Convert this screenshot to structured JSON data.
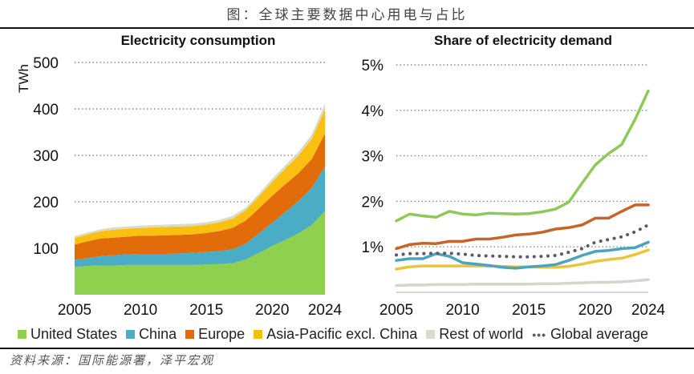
{
  "figure": {
    "title": "图：全球主要数据中心用电与占比",
    "source": "资料来源：国际能源署，泽平宏观"
  },
  "legend": [
    {
      "name": "United States",
      "color": "#8fd14f",
      "style": "square"
    },
    {
      "name": "China",
      "color": "#4bacc6",
      "style": "square"
    },
    {
      "name": "Europe",
      "color": "#e36c0a",
      "style": "square"
    },
    {
      "name": "Asia-Pacific excl. China",
      "color": "#f9c012",
      "style": "square"
    },
    {
      "name": "Rest of world",
      "color": "#d8dccb",
      "style": "square"
    },
    {
      "name": "Global average",
      "color": "#5a5a6e",
      "style": "dots"
    }
  ],
  "chart_data": [
    {
      "type": "area",
      "stacked": true,
      "title": "Electricity consumption",
      "xlabel": "",
      "ylabel": "TWh",
      "ylim": [
        0,
        500
      ],
      "yticks": [
        100,
        200,
        300,
        400,
        500
      ],
      "ytick_labels": [
        "100",
        "200",
        "300",
        "400",
        "500"
      ],
      "xticks": [
        2005,
        2010,
        2015,
        2020,
        2024
      ],
      "xtick_labels": [
        "2005",
        "2010",
        "2015",
        "2020",
        "2024"
      ],
      "grid": "horizontal dotted",
      "x": [
        2005,
        2006,
        2007,
        2008,
        2009,
        2010,
        2011,
        2012,
        2013,
        2014,
        2015,
        2016,
        2017,
        2018,
        2019,
        2020,
        2021,
        2022,
        2023,
        2024
      ],
      "series": [
        {
          "name": "United States",
          "color": "#8fd14f",
          "values": [
            60,
            62,
            63,
            63,
            64,
            64,
            64,
            64,
            64,
            64,
            65,
            66,
            68,
            76,
            90,
            105,
            118,
            132,
            150,
            180
          ]
        },
        {
          "name": "China",
          "color": "#4bacc6",
          "values": [
            15,
            17,
            20,
            22,
            23,
            24,
            24,
            24,
            25,
            26,
            27,
            28,
            30,
            34,
            42,
            50,
            60,
            70,
            80,
            95
          ]
        },
        {
          "name": "Europe",
          "color": "#e36c0a",
          "values": [
            33,
            36,
            38,
            38,
            38,
            39,
            39,
            40,
            40,
            40,
            41,
            43,
            46,
            50,
            54,
            58,
            60,
            60,
            62,
            72
          ]
        },
        {
          "name": "Asia-Pacific excl. China",
          "color": "#f9c012",
          "values": [
            14,
            15,
            16,
            17,
            17,
            17,
            18,
            18,
            18,
            18,
            18,
            19,
            20,
            22,
            26,
            30,
            34,
            38,
            44,
            52
          ]
        },
        {
          "name": "Rest of world",
          "color": "#d8dccb",
          "values": [
            4,
            4,
            4,
            5,
            5,
            5,
            5,
            5,
            5,
            5,
            5,
            5,
            6,
            6,
            6,
            7,
            7,
            8,
            9,
            12
          ]
        }
      ]
    },
    {
      "type": "line",
      "title": "Share of electricity demand",
      "xlabel": "",
      "ylabel": "",
      "ylim": [
        0,
        5
      ],
      "yticks": [
        1,
        2,
        3,
        4,
        5
      ],
      "ytick_labels": [
        "1%",
        "2%",
        "3%",
        "4%",
        "5%"
      ],
      "xticks": [
        2005,
        2010,
        2015,
        2020,
        2024
      ],
      "xtick_labels": [
        "2005",
        "2010",
        "2015",
        "2020",
        "2024"
      ],
      "grid": "horizontal dotted",
      "unit": "%",
      "x": [
        2005,
        2006,
        2007,
        2008,
        2009,
        2010,
        2011,
        2012,
        2013,
        2014,
        2015,
        2016,
        2017,
        2018,
        2019,
        2020,
        2021,
        2022,
        2023,
        2024
      ],
      "series": [
        {
          "name": "United States",
          "color": "#8fc95a",
          "style": "solid",
          "values": [
            1.57,
            1.72,
            1.68,
            1.65,
            1.78,
            1.72,
            1.7,
            1.74,
            1.73,
            1.72,
            1.73,
            1.77,
            1.83,
            1.98,
            2.4,
            2.8,
            3.05,
            3.25,
            3.8,
            4.43
          ]
        },
        {
          "name": "Europe",
          "color": "#c8642a",
          "style": "solid",
          "values": [
            0.96,
            1.05,
            1.08,
            1.07,
            1.12,
            1.12,
            1.17,
            1.17,
            1.21,
            1.26,
            1.28,
            1.32,
            1.39,
            1.42,
            1.48,
            1.63,
            1.63,
            1.78,
            1.92,
            1.92
          ]
        },
        {
          "name": "China",
          "color": "#4ba3c0",
          "style": "solid",
          "values": [
            0.7,
            0.74,
            0.74,
            0.85,
            0.79,
            0.65,
            0.62,
            0.59,
            0.55,
            0.53,
            0.56,
            0.58,
            0.61,
            0.7,
            0.81,
            0.9,
            0.92,
            0.96,
            0.98,
            1.1
          ]
        },
        {
          "name": "Asia-Pacific excl. China",
          "color": "#e8c53a",
          "style": "solid",
          "values": [
            0.51,
            0.56,
            0.58,
            0.58,
            0.58,
            0.58,
            0.58,
            0.58,
            0.57,
            0.56,
            0.56,
            0.55,
            0.55,
            0.57,
            0.62,
            0.68,
            0.72,
            0.75,
            0.83,
            0.93
          ]
        },
        {
          "name": "Rest of world",
          "color": "#d4d6cc",
          "style": "solid",
          "values": [
            0.15,
            0.16,
            0.16,
            0.17,
            0.17,
            0.17,
            0.18,
            0.18,
            0.18,
            0.18,
            0.18,
            0.19,
            0.19,
            0.2,
            0.21,
            0.22,
            0.22,
            0.23,
            0.25,
            0.28
          ]
        },
        {
          "name": "Global average",
          "color": "#5a5a6e",
          "style": "dotted",
          "values": [
            0.82,
            0.85,
            0.85,
            0.86,
            0.86,
            0.84,
            0.81,
            0.8,
            0.79,
            0.78,
            0.78,
            0.79,
            0.81,
            0.88,
            0.96,
            1.1,
            1.16,
            1.22,
            1.33,
            1.48
          ]
        }
      ]
    }
  ]
}
